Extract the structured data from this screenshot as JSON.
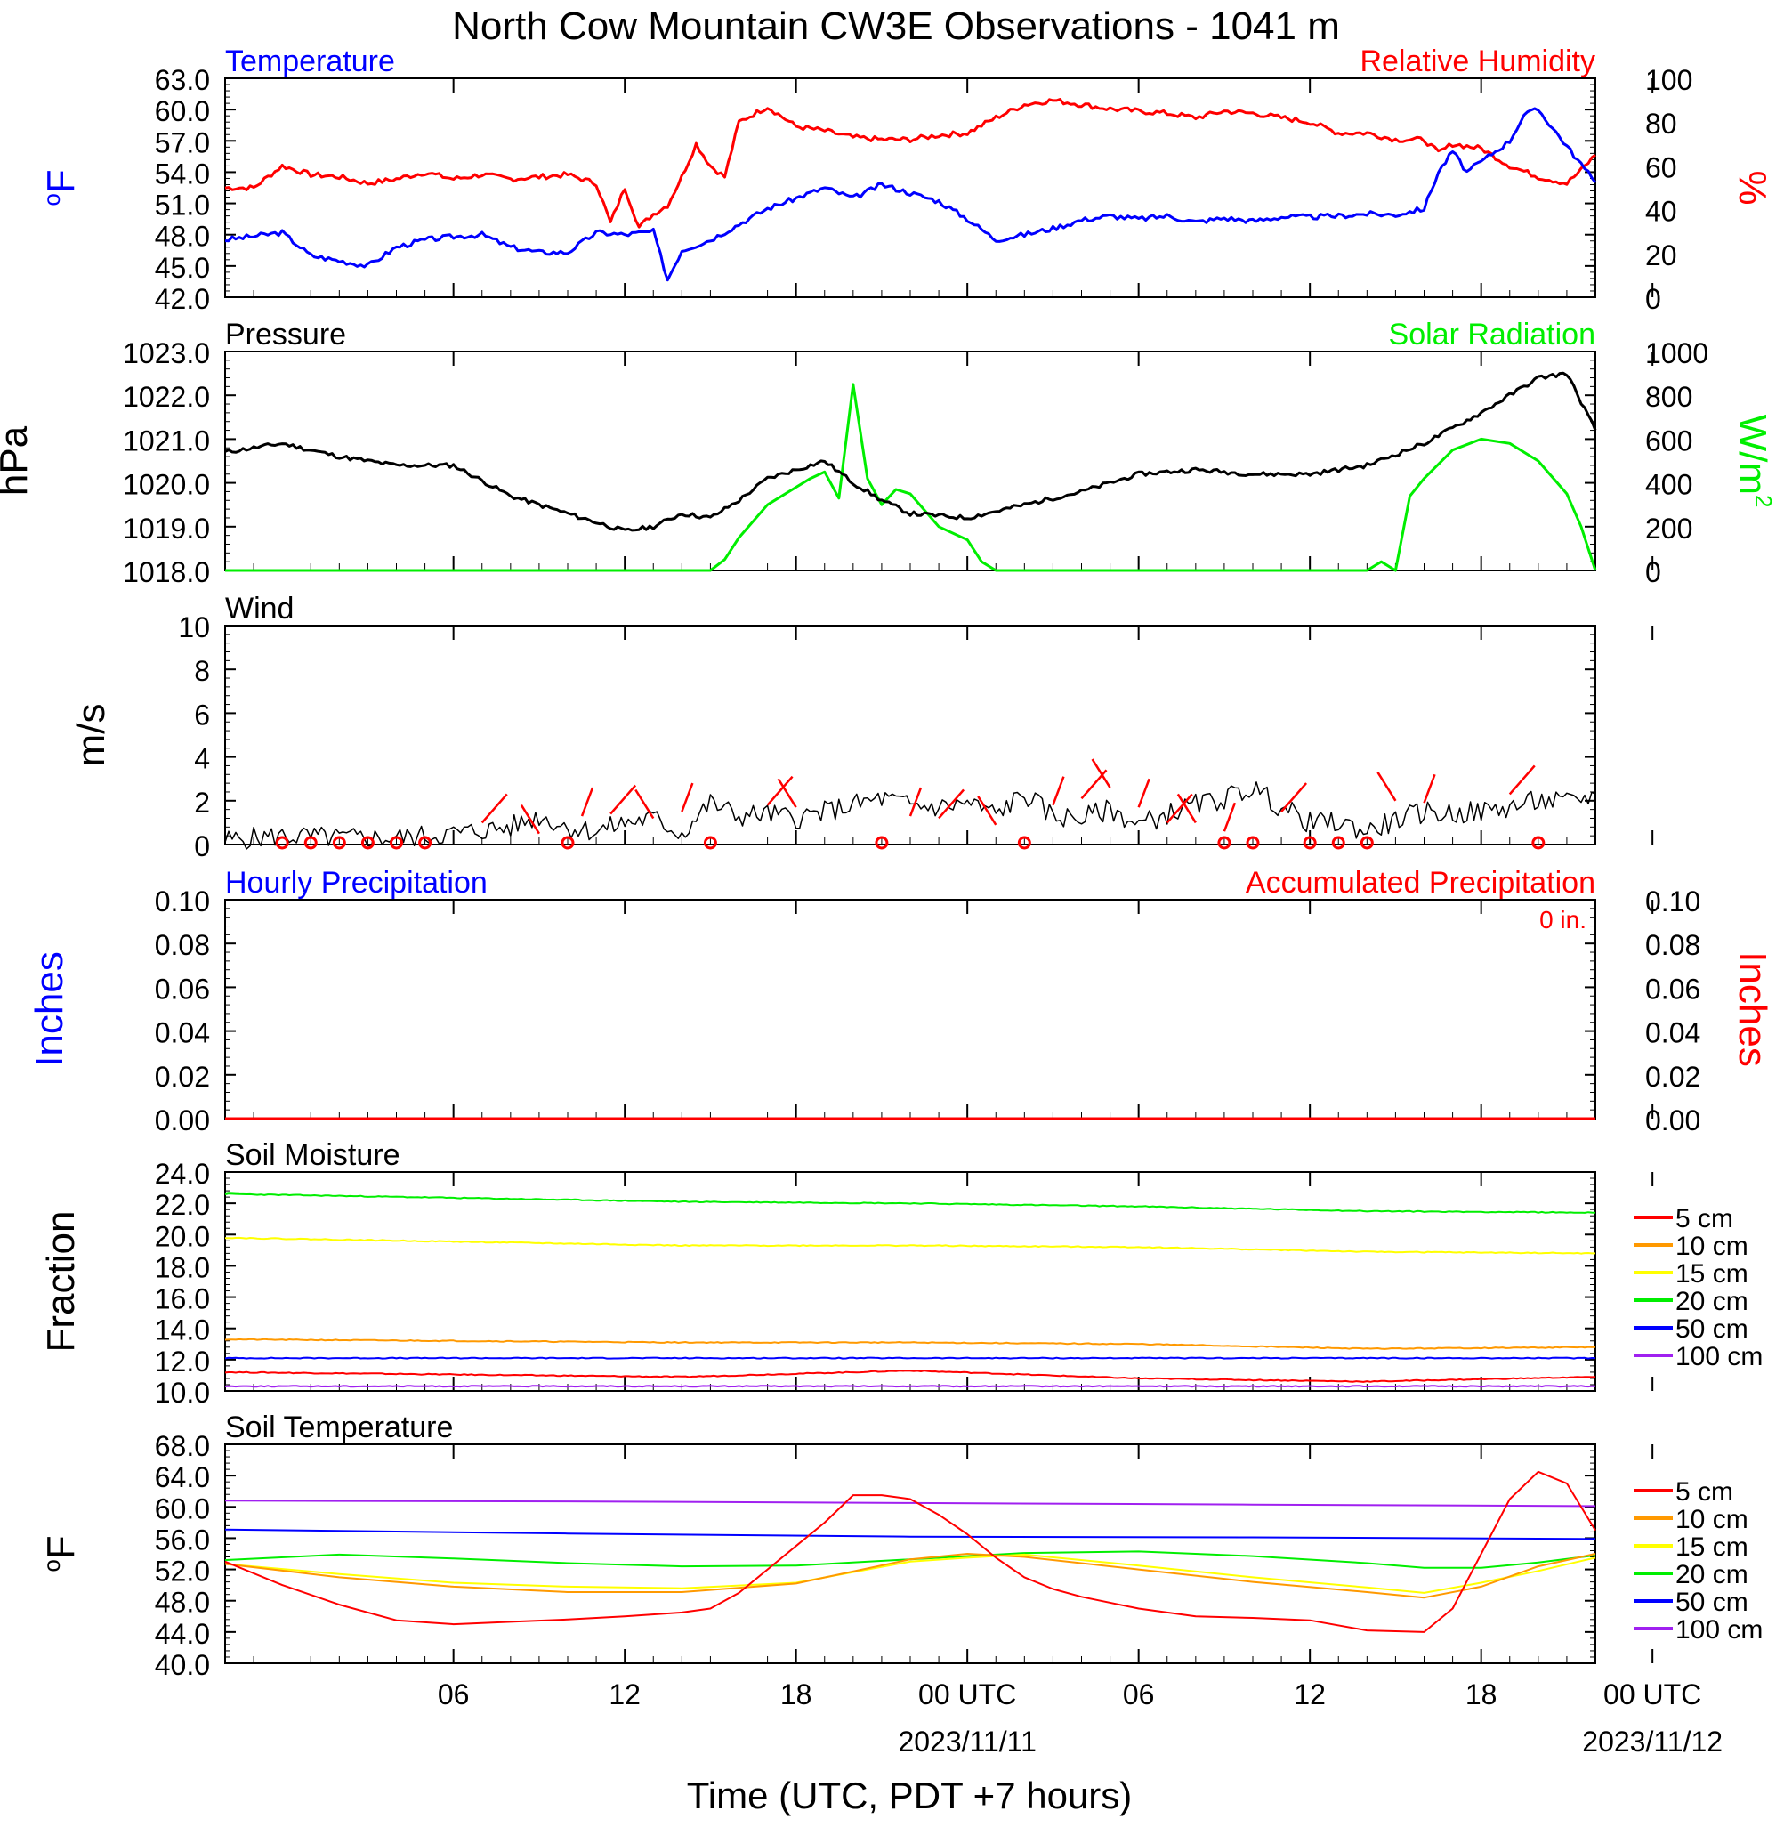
{
  "title": "North Cow Mountain CW3E Observations - 1041 m",
  "xaxis": {
    "title": "Time (UTC, PDT +7 hours)",
    "x_range_hours": [
      -2,
      46
    ],
    "tick_hours": [
      6,
      12,
      18,
      24,
      30,
      36,
      42,
      48
    ],
    "tick_labels": [
      "06",
      "12",
      "18",
      "00 UTC",
      "06",
      "12",
      "18",
      "00 UTC"
    ],
    "date_labels": [
      {
        "hour": 24,
        "text": "2023/11/11"
      },
      {
        "hour": 48,
        "text": "2023/11/12"
      }
    ]
  },
  "panels": {
    "temp_rh": {
      "left_title": "Temperature",
      "right_title": "Relative Humidity",
      "left_unit": "oF",
      "right_unit": "%",
      "left_ticks": [
        "63.0",
        "60.0",
        "57.0",
        "54.0",
        "51.0",
        "48.0",
        "45.0",
        "42.0"
      ],
      "right_ticks": [
        "100",
        "80",
        "60",
        "40",
        "20",
        "0"
      ]
    },
    "pressure_solar": {
      "left_title": "Pressure",
      "right_title": "Solar Radiation",
      "left_unit": "hPa",
      "right_unit": "W/m",
      "right_unit_sup": "2",
      "left_ticks": [
        "1023.0",
        "1022.0",
        "1021.0",
        "1020.0",
        "1019.0",
        "1018.0"
      ],
      "right_ticks": [
        "1000",
        "800",
        "600",
        "400",
        "200",
        "0"
      ]
    },
    "wind": {
      "left_title": "Wind",
      "left_unit": "m/s",
      "left_ticks": [
        "10",
        "8",
        "6",
        "4",
        "2",
        "0"
      ]
    },
    "precip": {
      "left_title": "Hourly Precipitation",
      "right_title": "Accumulated Precipitation",
      "accum_label": "0 in.",
      "left_unit": "Inches",
      "right_unit": "Inches",
      "left_ticks": [
        "0.10",
        "0.08",
        "0.06",
        "0.04",
        "0.02",
        "0.00"
      ],
      "right_ticks": [
        "0.10",
        "0.08",
        "0.06",
        "0.04",
        "0.02",
        "0.00"
      ]
    },
    "soil_moisture": {
      "left_title": "Soil Moisture",
      "left_unit": "Fraction",
      "left_ticks": [
        "24.0",
        "22.0",
        "20.0",
        "18.0",
        "16.0",
        "14.0",
        "12.0",
        "10.0"
      ],
      "legend": [
        "5 cm",
        "10 cm",
        "15 cm",
        "20 cm",
        "50 cm",
        "100 cm"
      ]
    },
    "soil_temp": {
      "left_title": "Soil Temperature",
      "left_unit": "oF",
      "left_ticks": [
        "68.0",
        "64.0",
        "60.0",
        "56.0",
        "52.0",
        "48.0",
        "44.0",
        "40.0"
      ],
      "legend": [
        "5 cm",
        "10 cm",
        "15 cm",
        "20 cm",
        "50 cm",
        "100 cm"
      ]
    }
  },
  "colors": {
    "temperature": "#0000ff",
    "rh": "#ff0000",
    "pressure": "#000000",
    "solar": "#00ee00",
    "wind": "#000000",
    "barb": "#ff0000",
    "d5": "#ff0000",
    "d10": "#ff9900",
    "d15": "#ffff00",
    "d20": "#00ee00",
    "d50": "#0000ff",
    "d100": "#a020f0"
  },
  "chart_data": [
    {
      "type": "line",
      "title": "Temperature / Relative Humidity",
      "x_units": "hours UTC from 2023/11/10 00 UTC",
      "series": [
        {
          "name": "Temperature",
          "axis": "left",
          "ylim": [
            42,
            63
          ],
          "x": [
            -2,
            0,
            1,
            2,
            3,
            4,
            5,
            6,
            7,
            8,
            9,
            10,
            11,
            12,
            13,
            13.5,
            14,
            15,
            16,
            17,
            18,
            19,
            20,
            21,
            22,
            23,
            24,
            25,
            26,
            27,
            28,
            29,
            30,
            31,
            32,
            33,
            34,
            35,
            36,
            37,
            38,
            39,
            40,
            40.5,
            41,
            41.5,
            42,
            43,
            43.5,
            44,
            45,
            46
          ],
          "y": [
            47.5,
            48.2,
            46.0,
            45.5,
            45.0,
            46.8,
            47.5,
            47.8,
            48.0,
            46.8,
            46.3,
            46.3,
            48.2,
            48.0,
            48.3,
            43.7,
            46.5,
            47.5,
            49.0,
            50.5,
            51.5,
            52.5,
            51.5,
            52.8,
            52.0,
            51.2,
            49.5,
            47.5,
            48.0,
            48.6,
            49.4,
            49.8,
            49.5,
            49.8,
            49.2,
            49.6,
            49.3,
            49.7,
            49.7,
            49.8,
            50.0,
            49.9,
            50.5,
            54.0,
            56.0,
            54.0,
            55.0,
            57.0,
            59.5,
            60.0,
            56.5,
            53.0
          ]
        },
        {
          "name": "Relative Humidity",
          "axis": "right",
          "ylim": [
            0,
            100
          ],
          "x": [
            -2,
            -1,
            0,
            1,
            2,
            3,
            4,
            5,
            6,
            7,
            8,
            9,
            10,
            11,
            11.5,
            12,
            12.5,
            13,
            13.5,
            14,
            14.5,
            15,
            15.5,
            16,
            17,
            18,
            19,
            20,
            21,
            22,
            23,
            24,
            25,
            26,
            27,
            28,
            29,
            30,
            31,
            32,
            33,
            34,
            35,
            36,
            37,
            38,
            39,
            40,
            40.5,
            41,
            42,
            43,
            44,
            45,
            45.5,
            46
          ],
          "y": [
            50,
            50,
            60,
            56,
            55,
            52,
            54,
            57,
            54,
            56,
            54,
            55,
            56,
            52,
            34,
            50,
            32,
            38,
            42,
            55,
            70,
            60,
            55,
            80,
            87,
            78,
            76,
            73,
            72,
            72,
            74,
            75,
            82,
            88,
            90,
            88,
            86,
            85,
            84,
            82,
            85,
            84,
            82,
            80,
            75,
            75,
            72,
            72,
            66,
            70,
            68,
            60,
            55,
            52,
            58,
            65
          ]
        }
      ]
    },
    {
      "type": "line",
      "title": "Pressure / Solar Radiation",
      "x_units": "hours UTC from 2023/11/10 00 UTC",
      "series": [
        {
          "name": "Pressure",
          "axis": "left",
          "ylim": [
            1018,
            1023
          ],
          "x": [
            -2,
            0,
            2,
            4,
            6,
            8,
            10,
            12,
            13,
            14,
            15,
            16,
            17,
            18,
            19,
            20,
            21,
            22,
            24,
            26,
            28,
            30,
            32,
            34,
            36,
            38,
            40,
            42,
            44,
            45,
            46
          ],
          "y": [
            1020.7,
            1020.9,
            1020.6,
            1020.4,
            1020.4,
            1019.7,
            1019.3,
            1018.9,
            1019.0,
            1019.3,
            1019.2,
            1019.6,
            1020.1,
            1020.3,
            1020.5,
            1020.0,
            1019.6,
            1019.3,
            1019.2,
            1019.5,
            1019.8,
            1020.2,
            1020.3,
            1020.2,
            1020.2,
            1020.4,
            1020.9,
            1021.6,
            1022.4,
            1022.5,
            1021.2
          ]
        },
        {
          "name": "Solar Radiation",
          "axis": "right",
          "ylim": [
            0,
            1000
          ],
          "x": [
            -2,
            15,
            15.5,
            16,
            17,
            18,
            18.5,
            19,
            19.5,
            20,
            20.5,
            21,
            21.5,
            22,
            23,
            24,
            24.5,
            25,
            36,
            38,
            38.5,
            39,
            39.5,
            40,
            41,
            42,
            43,
            44,
            45,
            45.5,
            46
          ],
          "y": [
            0,
            0,
            50,
            150,
            300,
            380,
            420,
            450,
            330,
            850,
            420,
            300,
            370,
            350,
            200,
            140,
            40,
            0,
            0,
            0,
            40,
            0,
            340,
            420,
            550,
            600,
            580,
            500,
            350,
            200,
            0
          ]
        }
      ]
    },
    {
      "type": "line",
      "title": "Wind",
      "x_units": "hours UTC from 2023/11/10 00 UTC",
      "ylim": [
        0,
        10
      ],
      "series": [
        {
          "name": "Wind speed",
          "x": [
            -2,
            0,
            2,
            4,
            6,
            8,
            9,
            10,
            11,
            12,
            13,
            14,
            15,
            16,
            17,
            18,
            19,
            20,
            21,
            22,
            23,
            24,
            25,
            26,
            27,
            28,
            29,
            30,
            31,
            32,
            33,
            34,
            35,
            36,
            37,
            38,
            39,
            40,
            41,
            42,
            43,
            44,
            45,
            46
          ],
          "y": [
            0.2,
            0.4,
            0.3,
            0.3,
            0.5,
            0.8,
            1.3,
            0.8,
            0.6,
            1.0,
            1.2,
            0.5,
            1.9,
            1.3,
            1.4,
            1.2,
            1.5,
            1.8,
            2.1,
            1.8,
            1.7,
            1.9,
            1.4,
            2.3,
            1.3,
            1.2,
            1.6,
            0.9,
            1.4,
            1.8,
            2.1,
            2.6,
            1.7,
            1.0,
            1.0,
            0.6,
            1.1,
            1.5,
            1.4,
            1.5,
            1.7,
            2.0,
            1.9,
            2.3
          ]
        }
      ]
    },
    {
      "type": "line",
      "title": "Hourly Precipitation / Accumulated Precipitation",
      "x_units": "hours UTC from 2023/11/10 00 UTC",
      "series": [
        {
          "name": "Hourly Precipitation",
          "axis": "left",
          "ylim": [
            0,
            0.1
          ],
          "x": [
            -2,
            46
          ],
          "y": [
            0,
            0
          ]
        },
        {
          "name": "Accumulated Precipitation",
          "axis": "right",
          "ylim": [
            0,
            0.1
          ],
          "x": [
            -2,
            46
          ],
          "y": [
            0,
            0
          ]
        }
      ]
    },
    {
      "type": "line",
      "title": "Soil Moisture",
      "x_units": "hours UTC from 2023/11/10 00 UTC",
      "ylim": [
        10,
        24
      ],
      "series": [
        {
          "name": "5 cm",
          "x": [
            -2,
            14,
            22,
            30,
            38,
            46
          ],
          "y": [
            11.2,
            10.9,
            11.3,
            10.8,
            10.6,
            10.9
          ]
        },
        {
          "name": "10 cm",
          "x": [
            -2,
            14,
            22,
            30,
            38,
            46
          ],
          "y": [
            13.3,
            13.1,
            13.1,
            13.0,
            12.7,
            12.8
          ]
        },
        {
          "name": "15 cm",
          "x": [
            -2,
            14,
            22,
            30,
            38,
            46
          ],
          "y": [
            19.8,
            19.3,
            19.3,
            19.2,
            18.9,
            18.8
          ]
        },
        {
          "name": "20 cm",
          "x": [
            -2,
            14,
            22,
            30,
            38,
            46
          ],
          "y": [
            22.6,
            22.1,
            22.0,
            21.8,
            21.5,
            21.4
          ]
        },
        {
          "name": "50 cm",
          "x": [
            -2,
            46
          ],
          "y": [
            12.1,
            12.1
          ]
        },
        {
          "name": "100 cm",
          "x": [
            -2,
            46
          ],
          "y": [
            10.3,
            10.3
          ]
        }
      ]
    },
    {
      "type": "line",
      "title": "Soil Temperature",
      "x_units": "hours UTC from 2023/11/10 00 UTC",
      "ylim": [
        40,
        68
      ],
      "series": [
        {
          "name": "5 cm",
          "x": [
            -2,
            0,
            2,
            4,
            6,
            8,
            10,
            12,
            14,
            15,
            16,
            17,
            18,
            19,
            20,
            21,
            22,
            23,
            24,
            25,
            26,
            27,
            28,
            30,
            32,
            34,
            36,
            38,
            40,
            41,
            42,
            43,
            44,
            45,
            46
          ],
          "y": [
            53,
            50,
            47.5,
            45.5,
            45,
            45.3,
            45.6,
            46,
            46.5,
            47,
            49,
            52,
            55,
            58,
            61.5,
            61.5,
            61,
            59,
            56.5,
            53.5,
            51,
            49.5,
            48.5,
            47,
            46,
            45.8,
            45.5,
            44.2,
            44,
            47,
            54,
            61,
            64.5,
            63,
            57
          ]
        },
        {
          "name": "10 cm",
          "x": [
            -2,
            2,
            6,
            10,
            14,
            18,
            22,
            24,
            26,
            30,
            34,
            38,
            40,
            42,
            44,
            46
          ],
          "y": [
            52.7,
            51,
            49.8,
            49.1,
            49.1,
            50.2,
            53.3,
            54.0,
            53.6,
            52.0,
            50.4,
            49.1,
            48.4,
            49.8,
            52.4,
            54.0
          ]
        },
        {
          "name": "15 cm",
          "x": [
            -2,
            2,
            6,
            10,
            14,
            18,
            22,
            24,
            26,
            30,
            34,
            38,
            40,
            42,
            44,
            46
          ],
          "y": [
            52.7,
            51.4,
            50.3,
            49.8,
            49.6,
            50.3,
            53.0,
            53.5,
            53.9,
            52.5,
            51.0,
            49.7,
            49.0,
            50.3,
            51.8,
            53.5
          ]
        },
        {
          "name": "20 cm",
          "x": [
            -2,
            2,
            6,
            10,
            14,
            18,
            22,
            24,
            26,
            30,
            34,
            38,
            40,
            42,
            44,
            46
          ],
          "y": [
            53.2,
            53.9,
            53.4,
            52.8,
            52.4,
            52.5,
            53.3,
            53.7,
            54.1,
            54.3,
            53.7,
            52.8,
            52.2,
            52.2,
            52.9,
            53.8
          ]
        },
        {
          "name": "50 cm",
          "x": [
            -2,
            10,
            22,
            34,
            46
          ],
          "y": [
            57.1,
            56.6,
            56.2,
            56.1,
            55.9
          ]
        },
        {
          "name": "100 cm",
          "x": [
            -2,
            10,
            22,
            34,
            46
          ],
          "y": [
            60.8,
            60.7,
            60.5,
            60.3,
            60.1
          ]
        }
      ]
    }
  ]
}
